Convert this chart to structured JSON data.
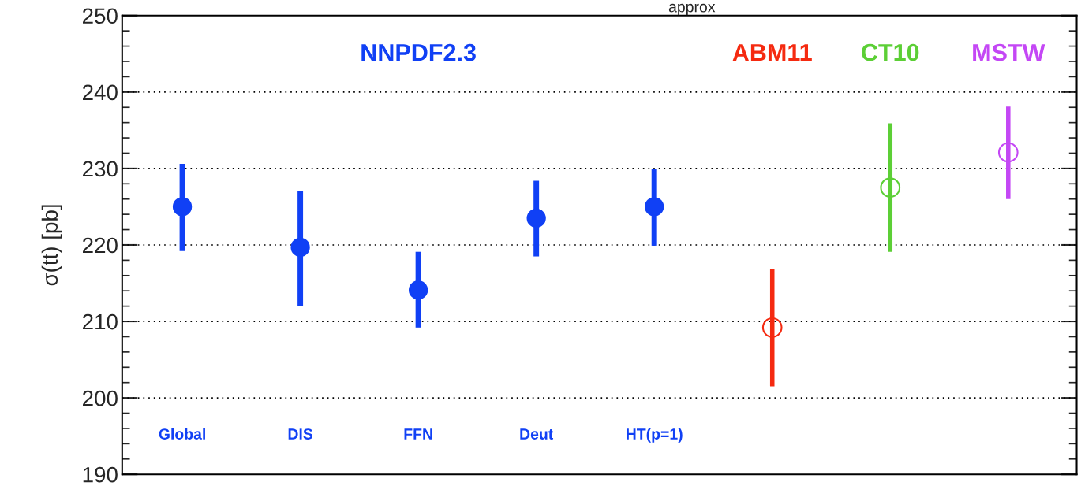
{
  "chart_data": {
    "type": "scatter",
    "ylabel": "σ(tt) [pb]",
    "annotations": [
      "approx"
    ],
    "categories": [
      "Global",
      "DIS",
      "FFN",
      "Deut",
      "HT(p=1)",
      null,
      null,
      null
    ],
    "series": [
      {
        "name": "NNPDF2.3",
        "color": "#1040f5",
        "values": [
          225.0,
          219.7,
          214.1,
          223.5,
          225.0,
          null,
          null,
          null
        ],
        "errors": [
          [
            219.2,
            230.6
          ],
          [
            212.0,
            227.1
          ],
          [
            209.2,
            219.1
          ],
          [
            218.5,
            228.4
          ],
          [
            219.9,
            230.0
          ],
          null,
          null,
          null
        ]
      },
      {
        "name": "ABM11",
        "color": "#f52a10",
        "values": [
          null,
          null,
          null,
          null,
          null,
          209.2,
          null,
          null
        ],
        "errors": [
          null,
          null,
          null,
          null,
          null,
          [
            201.5,
            216.8
          ],
          null,
          null
        ]
      },
      {
        "name": "CT10",
        "color": "#5ccf36",
        "values": [
          null,
          null,
          null,
          null,
          null,
          null,
          227.5,
          null
        ],
        "errors": [
          null,
          null,
          null,
          null,
          null,
          null,
          [
            219.1,
            235.9
          ],
          null
        ]
      },
      {
        "name": "MSTW",
        "color": "#c447f5",
        "values": [
          null,
          null,
          null,
          null,
          null,
          null,
          null,
          232.1
        ],
        "errors": [
          null,
          null,
          null,
          null,
          null,
          null,
          null,
          [
            226.0,
            238.1
          ]
        ]
      }
    ],
    "ylim": [
      190,
      250
    ],
    "yticks": [
      190,
      200,
      210,
      220,
      230,
      240,
      250
    ],
    "grid": "y",
    "marker": "circle",
    "tick_labels": "y",
    "legend": false
  }
}
